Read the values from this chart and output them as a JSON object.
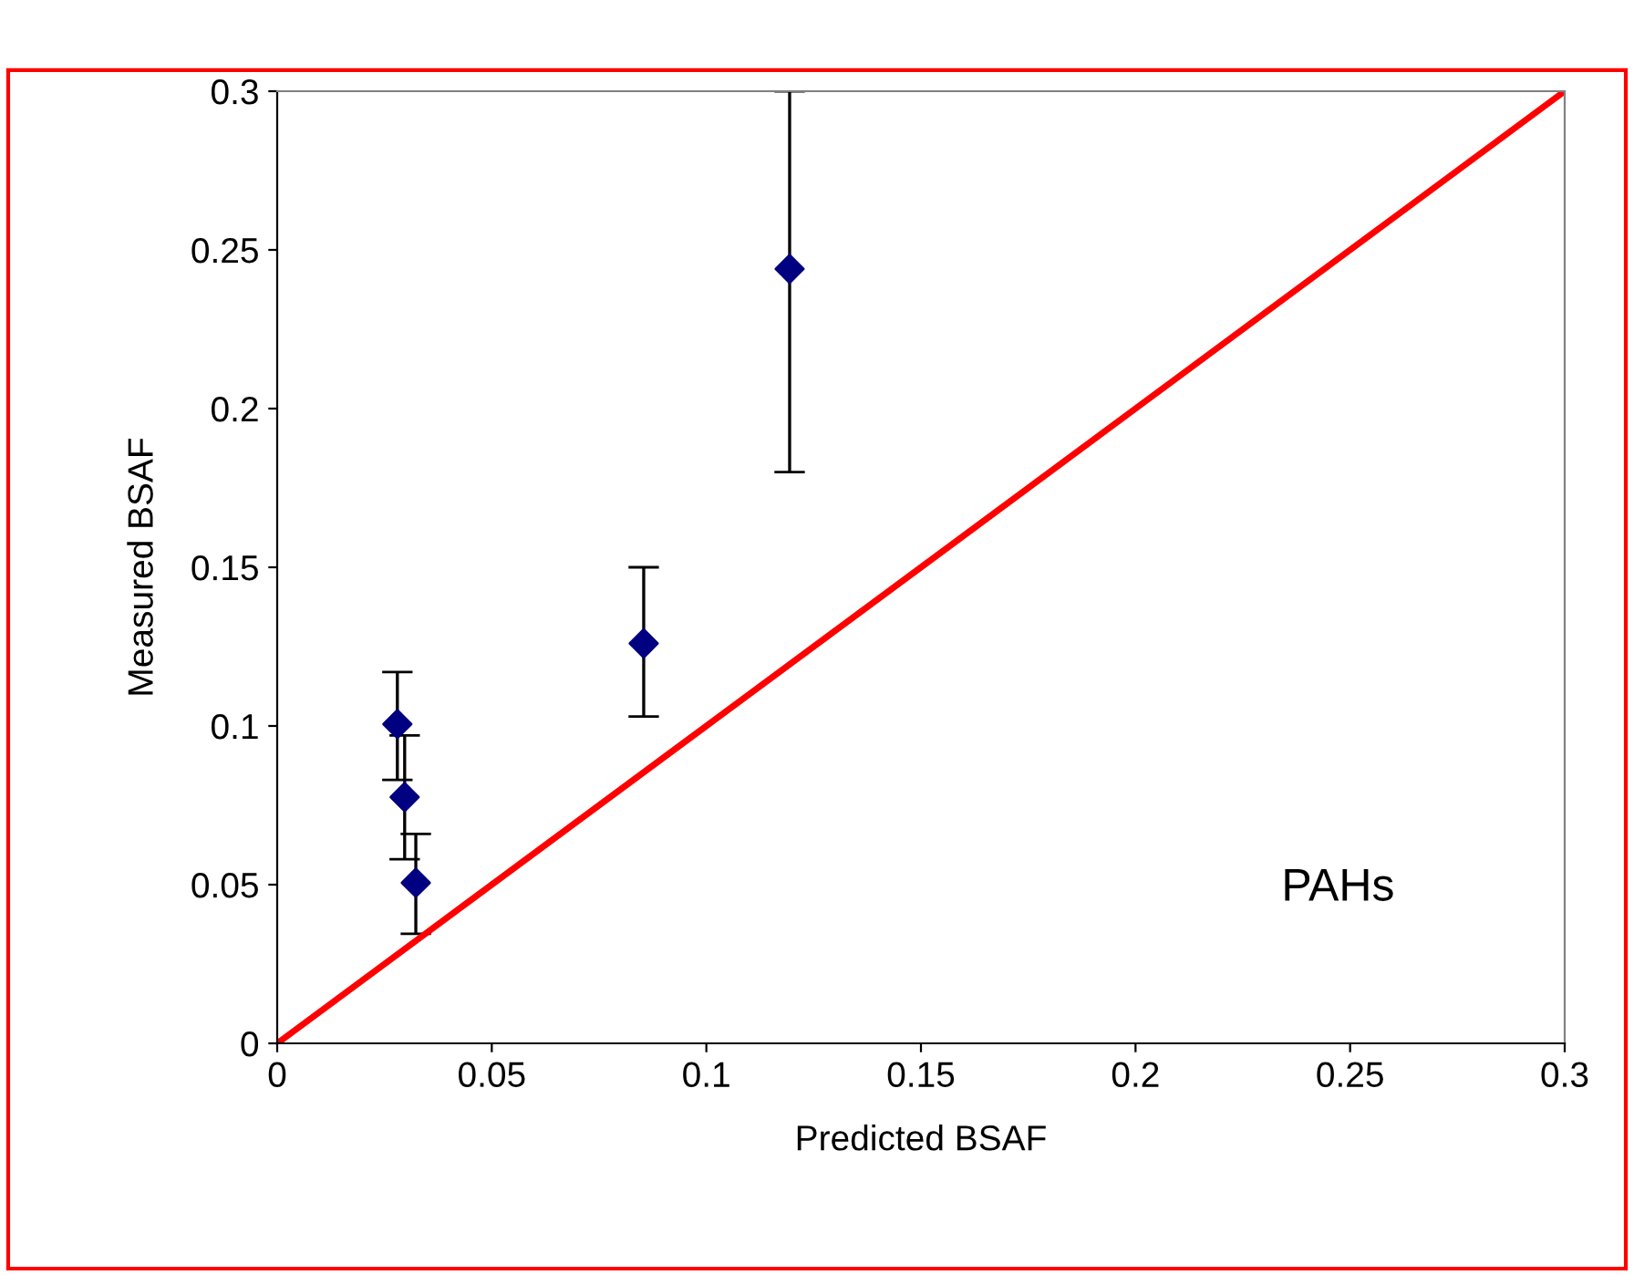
{
  "chart_data": {
    "type": "scatter",
    "xlabel": "Predicted BSAF",
    "ylabel": "Measured BSAF",
    "x": [
      0.1194,
      0.0854,
      0.028,
      0.0297,
      0.0323
    ],
    "series": [
      {
        "color": "#000080",
        "values": [
          0.244,
          0.126,
          0.1006,
          0.0776,
          0.0506
        ],
        "errors": [
          [
            0.18,
            0.3
          ],
          [
            0.103,
            0.15
          ],
          [
            0.083,
            0.117
          ],
          [
            0.058,
            0.097
          ],
          [
            0.0345,
            0.066
          ]
        ],
        "marker": "diamond"
      },
      {
        "type": "line",
        "color": "#ff0000",
        "x": [
          0,
          0.3
        ],
        "values": [
          0,
          0.3
        ],
        "marker": "none",
        "line_style": "solid"
      }
    ],
    "xlim": [
      0,
      0.3
    ],
    "ylim": [
      0,
      0.3
    ],
    "xticks": [
      0,
      0.05,
      0.1,
      0.15,
      0.2,
      0.25,
      0.3
    ],
    "yticks": [
      0,
      0.05,
      0.1,
      0.15,
      0.2,
      0.25,
      0.3
    ],
    "annotations": [
      "PAHs"
    ],
    "grid": false,
    "legend": false
  }
}
